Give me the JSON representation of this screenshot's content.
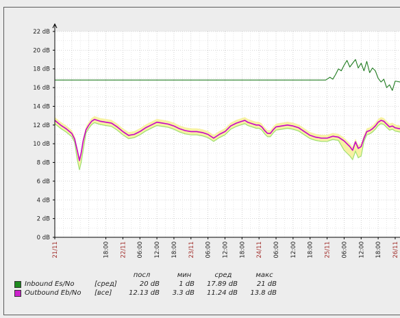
{
  "chart_data": {
    "type": "line",
    "title": "",
    "xlabel": "",
    "ylabel": "",
    "y_unit": "dB",
    "ylim": [
      0,
      22
    ],
    "y_ticks": [
      "0 dB",
      "2 dB",
      "4 dB",
      "6 dB",
      "8 dB",
      "10 dB",
      "12 dB",
      "14 dB",
      "16 dB",
      "18 dB",
      "20 dB",
      "22 dB"
    ],
    "x_ticks": [
      {
        "label": "21/11",
        "hours": 0,
        "day": true
      },
      {
        "label": "18:00",
        "hours": 18
      },
      {
        "label": "22/11",
        "hours": 24,
        "day": true
      },
      {
        "label": "06:00",
        "hours": 30
      },
      {
        "label": "12:00",
        "hours": 36
      },
      {
        "label": "18:00",
        "hours": 42
      },
      {
        "label": "23/11",
        "hours": 48,
        "day": true
      },
      {
        "label": "06:00",
        "hours": 54
      },
      {
        "label": "12:00",
        "hours": 60
      },
      {
        "label": "18:00",
        "hours": 66
      },
      {
        "label": "24/11",
        "hours": 72,
        "day": true
      },
      {
        "label": "06:00",
        "hours": 78
      },
      {
        "label": "12:00",
        "hours": 84
      },
      {
        "label": "18:00",
        "hours": 90
      },
      {
        "label": "25/11",
        "hours": 96,
        "day": true
      },
      {
        "label": "06:00",
        "hours": 102
      },
      {
        "label": "12:00",
        "hours": 108
      },
      {
        "label": "18:00",
        "hours": 114
      },
      {
        "label": "26/11",
        "hours": 120,
        "day": true
      }
    ],
    "x_range_hours": [
      0,
      121.7
    ],
    "grid": true,
    "series": [
      {
        "name": "Inbound Es/No",
        "color": "#1e7a1e",
        "x": [
          0,
          24,
          48,
          72,
          95.5,
          97,
          98,
          99,
          100,
          101,
          102,
          103,
          104,
          105,
          106,
          107,
          108,
          109,
          110,
          111,
          112,
          113,
          114,
          115,
          116,
          117,
          118,
          119,
          120,
          121.7
        ],
        "y": [
          16.8,
          16.8,
          16.8,
          16.8,
          16.8,
          17.1,
          16.9,
          17.4,
          18.0,
          17.8,
          18.4,
          18.9,
          18.2,
          18.6,
          19.0,
          18.1,
          18.6,
          17.8,
          18.8,
          17.6,
          18.1,
          17.8,
          17.0,
          16.6,
          16.9,
          16.0,
          16.3,
          15.7,
          16.7,
          16.6
        ]
      },
      {
        "name": "Outbound Eb/No",
        "color": "#c800c8",
        "x": [
          0,
          2,
          4,
          6,
          7,
          8,
          8.7,
          9.3,
          10,
          11,
          12,
          13,
          14,
          16,
          18,
          20,
          22,
          24,
          26,
          28,
          30,
          32,
          34,
          36,
          38,
          40,
          42,
          44,
          46,
          48,
          50,
          52,
          54,
          56,
          58,
          60,
          62,
          64,
          66,
          67,
          68,
          69,
          70,
          71,
          72,
          73,
          74,
          75,
          76,
          77,
          78,
          80,
          82,
          84,
          86,
          88,
          90,
          92,
          94,
          96,
          98,
          100,
          102,
          104,
          105,
          106,
          107,
          108,
          109,
          110,
          111,
          112,
          113,
          114,
          115,
          116,
          117,
          118,
          119,
          120,
          121.7
        ],
        "y": [
          12.5,
          12.0,
          11.6,
          11.1,
          10.5,
          9.2,
          8.2,
          9.0,
          10.3,
          11.5,
          12.0,
          12.4,
          12.6,
          12.4,
          12.3,
          12.2,
          11.8,
          11.3,
          10.9,
          11.0,
          11.3,
          11.7,
          12.0,
          12.3,
          12.2,
          12.1,
          11.9,
          11.6,
          11.4,
          11.3,
          11.3,
          11.2,
          11.0,
          10.6,
          11.0,
          11.3,
          11.9,
          12.2,
          12.4,
          12.5,
          12.3,
          12.2,
          12.1,
          12.0,
          12.0,
          11.8,
          11.4,
          11.1,
          11.1,
          11.5,
          11.8,
          11.9,
          12.0,
          11.9,
          11.7,
          11.3,
          10.9,
          10.7,
          10.6,
          10.6,
          10.8,
          10.7,
          10.3,
          9.7,
          9.3,
          10.2,
          9.5,
          9.7,
          10.6,
          11.3,
          11.4,
          11.6,
          11.9,
          12.3,
          12.5,
          12.4,
          12.1,
          11.8,
          11.9,
          11.7,
          11.6
        ]
      }
    ]
  },
  "legend": {
    "headers": [
      "посл",
      "мин",
      "сред",
      "макс"
    ],
    "rows": [
      {
        "name": "Inbound Es/No",
        "cf": "[сред]",
        "color": "#1e8a1e",
        "values": [
          "20 dB",
          "1 dB",
          "17.89 dB",
          "21 dB"
        ]
      },
      {
        "name": "Outbound Eb/No",
        "cf": "[все]",
        "color": "#cc22cc",
        "values": [
          "12.13 dB",
          "3.3 dB",
          "11.24 dB",
          "13.8 dB"
        ]
      }
    ]
  }
}
